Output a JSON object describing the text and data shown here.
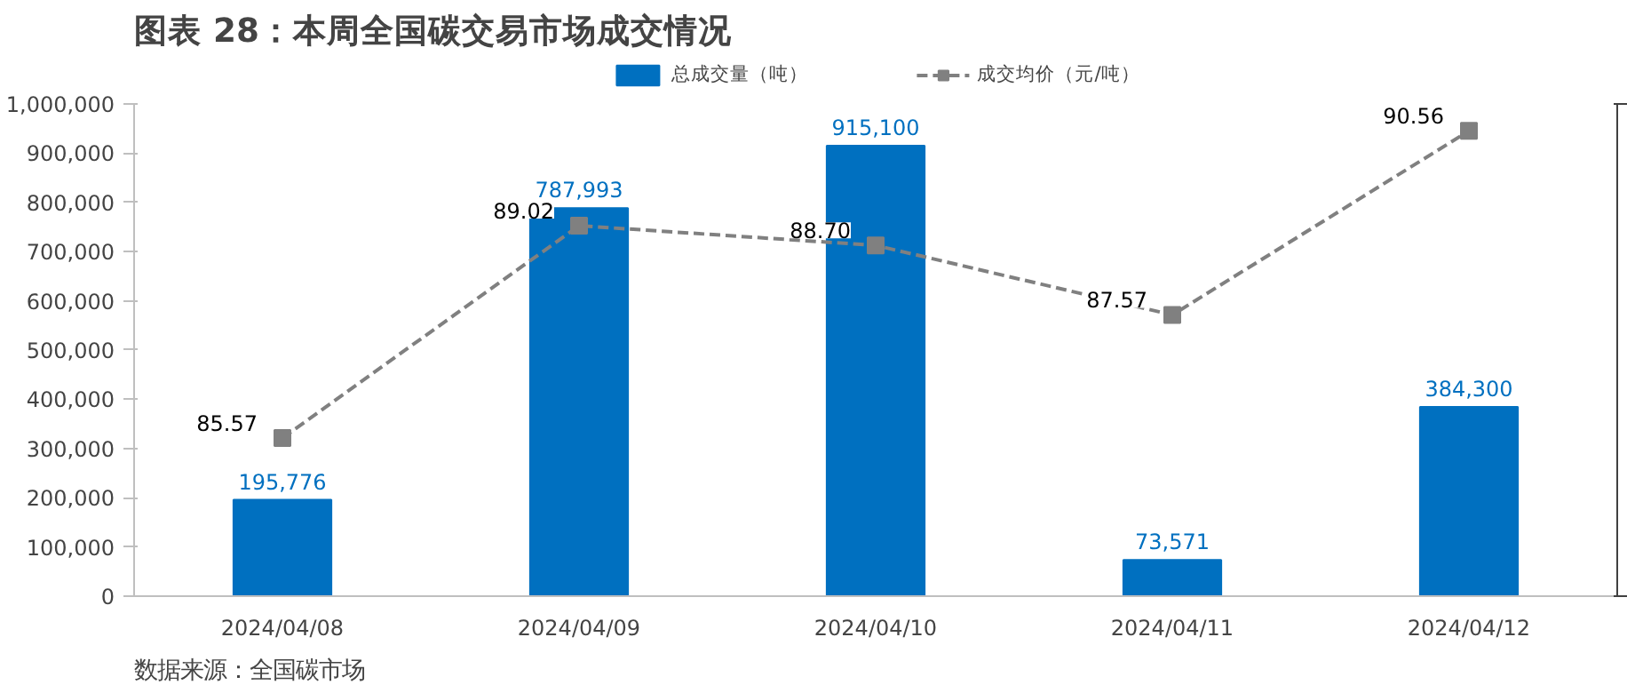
{
  "chart_data": {
    "type": "bar",
    "title": "图表 28：本周全国碳交易市场成交情况",
    "categories": [
      "2024/04/08",
      "2024/04/09",
      "2024/04/10",
      "2024/04/11",
      "2024/04/12"
    ],
    "series": [
      {
        "name": "总成交量（吨）",
        "color": "#0070c0",
        "values": [
          195776,
          787993,
          915100,
          73571,
          384300
        ],
        "value_labels": [
          "195,776",
          "787,993",
          "915,100",
          "73,571",
          "384,300"
        ]
      },
      {
        "name": "成交均价（元/吨）",
        "type": "line",
        "axis": "y2",
        "color": "#808080",
        "values": [
          85.57,
          89.02,
          88.7,
          87.57,
          90.56
        ],
        "value_labels": [
          "85.57",
          "89.02",
          "88.70",
          "87.57",
          "90.56"
        ]
      }
    ],
    "ylim": [
      0,
      1000000
    ],
    "yticks": [
      {
        "value": 0,
        "label": "0"
      },
      {
        "value": 100000,
        "label": "100,000"
      },
      {
        "value": 200000,
        "label": "200,000"
      },
      {
        "value": 300000,
        "label": "300,000"
      },
      {
        "value": 400000,
        "label": "400,000"
      },
      {
        "value": 500000,
        "label": "500,000"
      },
      {
        "value": 600000,
        "label": "600,000"
      },
      {
        "value": 700000,
        "label": "700,000"
      },
      {
        "value": 800000,
        "label": "800,000"
      },
      {
        "value": 900000,
        "label": "900,000"
      },
      {
        "value": 1000000,
        "label": "1,000,000"
      }
    ],
    "y2lim": [
      83,
      91
    ],
    "y2ticks": [
      {
        "value": 83,
        "label": null
      },
      {
        "value": 91,
        "label": null
      }
    ],
    "tick_labels": "xy",
    "marker": "square",
    "line_style": "dashed",
    "grid": false,
    "legend": "top",
    "annotations": [
      "数据来源：全国碳市场"
    ]
  }
}
